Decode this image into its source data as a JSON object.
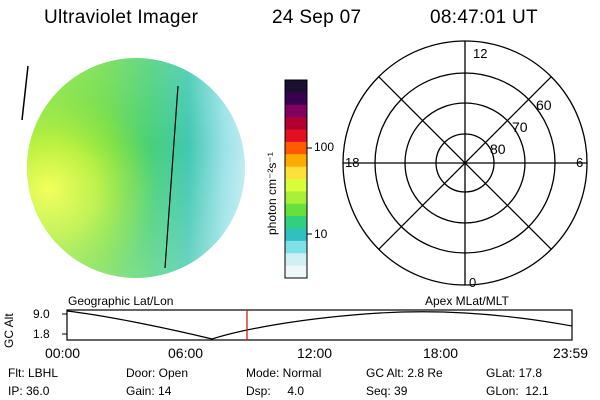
{
  "header": {
    "instrument": "Ultraviolet Imager",
    "date": "24 Sep 07",
    "time": "08:47:01 UT"
  },
  "colorbar": {
    "unit_label": "photon cm⁻²s⁻¹",
    "ticks": [
      "100",
      "10"
    ],
    "colors": [
      "#1a0f2e",
      "#3a0050",
      "#800060",
      "#b00030",
      "#e01020",
      "#ff5a00",
      "#ffaa00",
      "#ffe03a",
      "#d8ff3a",
      "#a8f03a",
      "#66e03a",
      "#30d080",
      "#30c0c0",
      "#80e0e8",
      "#d0f0f4",
      "#eef8fa"
    ]
  },
  "polar_plot": {
    "clock_labels": [
      "12",
      "18",
      "6",
      "0"
    ],
    "lat_labels": [
      "60",
      "70",
      "80"
    ]
  },
  "timeline": {
    "y_axis_label": "GC Alt",
    "y_ticks": [
      "9.0",
      "1.8"
    ],
    "left_title": "Geographic Lat/Lon",
    "right_title": "Apex MLat/MLT",
    "x_ticks": [
      "00:00",
      "06:00",
      "12:00",
      "18:00",
      "23:59"
    ],
    "marker_color": "#d02010"
  },
  "info": {
    "filter": "Flt: LBHL",
    "door": "Door: Open",
    "mode": "Mode: Normal",
    "gc_alt": "GC Alt: 2.8 Re",
    "glat": "GLat:  17.8",
    "ip": "IP: 36.0",
    "gain": "Gain: 14",
    "dsp": "Dsp:     4.0",
    "seq": "Seq: 39",
    "glon": "GLon:  12.1"
  }
}
